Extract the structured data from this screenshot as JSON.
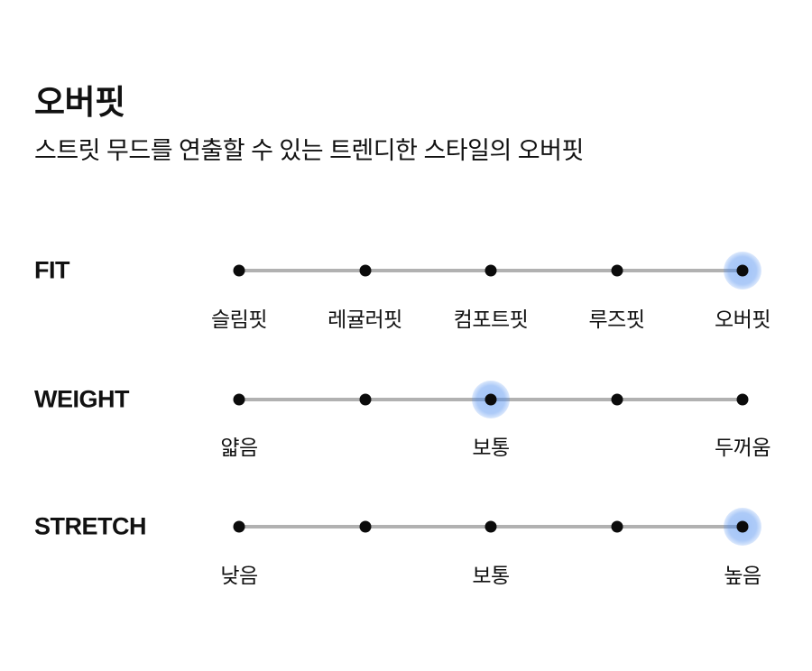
{
  "page": {
    "title": "오버핏",
    "subtitle": "스트릿 무드를 연출할 수 있는 트렌디한 스타일의 오버핏"
  },
  "colors": {
    "background": "#ffffff",
    "text": "#111111",
    "track": "#b1b1b1",
    "dot": "#0b0b0b",
    "highlight": "#4d8df0"
  },
  "scales": [
    {
      "name": "FIT",
      "selected_index": 4,
      "selected_label": "오버핏",
      "points": [
        {
          "label": "슬림핏"
        },
        {
          "label": "레귤러핏"
        },
        {
          "label": "컴포트핏"
        },
        {
          "label": "루즈핏"
        },
        {
          "label": "오버핏"
        }
      ]
    },
    {
      "name": "WEIGHT",
      "selected_index": 2,
      "selected_label": "보통",
      "points": [
        {
          "label": "얇음"
        },
        {
          "label": ""
        },
        {
          "label": "보통"
        },
        {
          "label": ""
        },
        {
          "label": "두꺼움"
        }
      ]
    },
    {
      "name": "STRETCH",
      "selected_index": 4,
      "selected_label": "높음",
      "points": [
        {
          "label": "낮음"
        },
        {
          "label": ""
        },
        {
          "label": "보통"
        },
        {
          "label": ""
        },
        {
          "label": "높음"
        }
      ]
    }
  ]
}
